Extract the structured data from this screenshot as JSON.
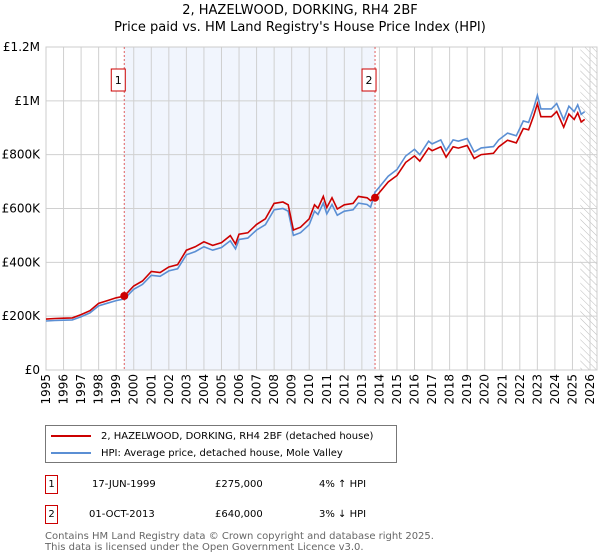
{
  "title_line1": "2, HAZELWOOD, DORKING, RH4 2BF",
  "title_line2": "Price paid vs. HM Land Registry's House Price Index (HPI)",
  "chart_data": {
    "type": "line",
    "title": "2, HAZELWOOD, DORKING, RH4 2BF — Price paid vs. HM Land Registry's House Price Index (HPI)",
    "xlim": [
      1995,
      2026
    ],
    "ylim": [
      0,
      1200000
    ],
    "x_ticks": [
      "1995",
      "1996",
      "1997",
      "1998",
      "1999",
      "2000",
      "2001",
      "2002",
      "2003",
      "2004",
      "2005",
      "2006",
      "2007",
      "2008",
      "2009",
      "2010",
      "2011",
      "2012",
      "2013",
      "2014",
      "2015",
      "2016",
      "2017",
      "2018",
      "2019",
      "2020",
      "2021",
      "2022",
      "2023",
      "2024",
      "2025",
      "2026"
    ],
    "y_ticks": [
      {
        "v": 0,
        "label": "£0"
      },
      {
        "v": 200000,
        "label": "£200K"
      },
      {
        "v": 400000,
        "label": "£400K"
      },
      {
        "v": 600000,
        "label": "£600K"
      },
      {
        "v": 800000,
        "label": "£800K"
      },
      {
        "v": 1000000,
        "label": "£1M"
      },
      {
        "v": 1200000,
        "label": "£1.2M"
      }
    ],
    "grid": true,
    "shaded_range": [
      1999.46,
      2013.75
    ],
    "forecast_hatch_from": 2025.45,
    "hpi": {
      "name": "HPI: Average price, detached house, Mole Valley",
      "color": "#5b8fd4",
      "x": [
        1995,
        1995.5,
        1996,
        1996.5,
        1997,
        1997.5,
        1998,
        1998.5,
        1999,
        1999.46,
        2000,
        2000.5,
        2001,
        2001.5,
        2002,
        2002.5,
        2003,
        2003.5,
        2004,
        2004.5,
        2005,
        2005.5,
        2005.8,
        2006,
        2006.5,
        2007,
        2007.5,
        2008,
        2008.5,
        2008.8,
        2009.1,
        2009.5,
        2010,
        2010.3,
        2010.5,
        2010.8,
        2011,
        2011.3,
        2011.6,
        2012,
        2012.5,
        2012.8,
        2013.3,
        2013.5,
        2013.75,
        2014,
        2014.5,
        2015,
        2015.5,
        2016,
        2016.3,
        2016.8,
        2017,
        2017.5,
        2017.8,
        2018.2,
        2018.5,
        2019,
        2019.4,
        2019.8,
        2020.5,
        2020.8,
        2021.3,
        2021.8,
        2022.2,
        2022.5,
        2022.8,
        2023,
        2023.2,
        2023.8,
        2024.1,
        2024.5,
        2024.8,
        2025.1,
        2025.3,
        2025.5,
        2025.7
      ],
      "y": [
        182000,
        184000,
        185000,
        186000,
        198000,
        212000,
        238000,
        248000,
        258000,
        264000,
        300000,
        318000,
        352000,
        348000,
        368000,
        376000,
        428000,
        440000,
        458000,
        445000,
        455000,
        480000,
        450000,
        485000,
        490000,
        520000,
        540000,
        595000,
        600000,
        590000,
        500000,
        510000,
        540000,
        590000,
        578000,
        620000,
        580000,
        615000,
        575000,
        590000,
        595000,
        620000,
        615000,
        605000,
        660000,
        680000,
        720000,
        745000,
        795000,
        820000,
        800000,
        850000,
        840000,
        855000,
        815000,
        855000,
        850000,
        860000,
        810000,
        825000,
        830000,
        855000,
        880000,
        870000,
        925000,
        920000,
        975000,
        1020000,
        970000,
        970000,
        990000,
        930000,
        980000,
        960000,
        985000,
        950000,
        960000
      ]
    },
    "property": {
      "name": "2, HAZELWOOD, DORKING, RH4 2BF (detached house)",
      "color": "#cc0000",
      "ratio_before_sale2": 1.04,
      "ratio_after_sale2": 0.97
    },
    "sales": [
      {
        "id": "1",
        "x": 1999.46,
        "price": 275000
      },
      {
        "id": "2",
        "x": 2013.75,
        "price": 640000
      }
    ]
  },
  "legend": {
    "property_label": "2, HAZELWOOD, DORKING, RH4 2BF (detached house)",
    "hpi_label": "HPI: Average price, detached house, Mole Valley"
  },
  "transactions": [
    {
      "num": "1",
      "date": "17-JUN-1999",
      "price": "£275,000",
      "delta": "4% ↑ HPI"
    },
    {
      "num": "2",
      "date": "01-OCT-2013",
      "price": "£640,000",
      "delta": "3% ↓ HPI"
    }
  ],
  "footer_line1": "Contains HM Land Registry data © Crown copyright and database right 2025.",
  "footer_line2": "This data is licensed under the Open Government Licence v3.0."
}
